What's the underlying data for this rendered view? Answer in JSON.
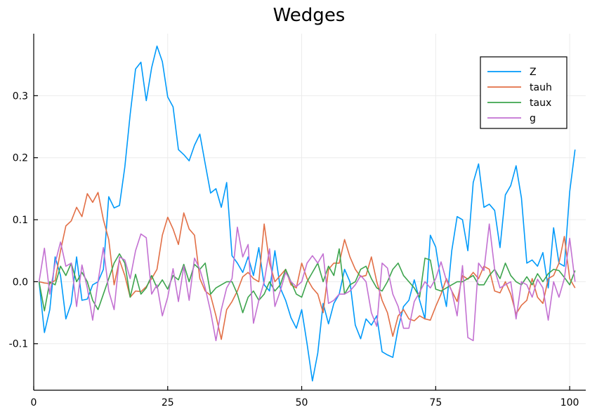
{
  "chart_data": {
    "type": "line",
    "title": "Wedges",
    "xlabel": "",
    "ylabel": "",
    "xlim": [
      0,
      103
    ],
    "ylim": [
      -0.175,
      0.4
    ],
    "xticks": [
      0,
      25,
      50,
      75,
      100
    ],
    "yticks": [
      -0.1,
      0.0,
      0.1,
      0.2,
      0.3
    ],
    "ytick_labels": [
      "-0.1",
      "0.0",
      "0.1",
      "0.2",
      "0.3"
    ],
    "grid": true,
    "legend_position": "top-right",
    "series": [
      {
        "name": "Z",
        "color": "#009AFA",
        "values": [
          0.0,
          -0.082,
          -0.045,
          0.04,
          0.01,
          -0.06,
          -0.035,
          0.04,
          -0.03,
          -0.028,
          -0.005,
          0.0,
          0.02,
          0.137,
          0.119,
          0.123,
          0.185,
          0.27,
          0.343,
          0.354,
          0.292,
          0.345,
          0.38,
          0.355,
          0.298,
          0.282,
          0.213,
          0.205,
          0.195,
          0.22,
          0.238,
          0.19,
          0.143,
          0.15,
          0.12,
          0.16,
          0.042,
          0.03,
          0.015,
          0.04,
          0.01,
          0.055,
          -0.005,
          -0.015,
          0.05,
          -0.01,
          -0.03,
          -0.058,
          -0.075,
          -0.045,
          -0.1,
          -0.16,
          -0.115,
          -0.035,
          -0.068,
          -0.035,
          -0.02,
          0.02,
          0.0,
          -0.07,
          -0.092,
          -0.06,
          -0.07,
          -0.055,
          -0.113,
          -0.118,
          -0.122,
          -0.075,
          -0.04,
          -0.03,
          0.003,
          -0.03,
          -0.06,
          0.075,
          0.056,
          0.0,
          -0.04,
          0.05,
          0.105,
          0.1,
          0.05,
          0.16,
          0.19,
          0.12,
          0.125,
          0.115,
          0.055,
          0.14,
          0.155,
          0.187,
          0.135,
          0.03,
          0.035,
          0.025,
          0.047,
          -0.01,
          0.087,
          0.03,
          0.025,
          0.145,
          0.213
        ]
      },
      {
        "name": "tauh",
        "color": "#E26F46",
        "values": [
          0.0,
          -0.002,
          -0.003,
          0.002,
          0.05,
          0.09,
          0.098,
          0.12,
          0.105,
          0.142,
          0.128,
          0.144,
          0.1,
          0.068,
          -0.005,
          0.035,
          0.01,
          -0.025,
          -0.015,
          -0.016,
          -0.008,
          0.005,
          0.02,
          0.075,
          0.104,
          0.085,
          0.06,
          0.111,
          0.085,
          0.075,
          0.005,
          -0.015,
          -0.022,
          -0.055,
          -0.093,
          -0.045,
          -0.032,
          -0.015,
          0.008,
          0.015,
          0.005,
          0.0,
          0.093,
          0.03,
          0.0,
          0.01,
          0.02,
          -0.005,
          -0.01,
          0.03,
          0.005,
          -0.01,
          -0.02,
          -0.05,
          0.02,
          0.03,
          0.03,
          0.068,
          0.04,
          0.02,
          0.008,
          0.01,
          0.04,
          0.0,
          -0.03,
          -0.05,
          -0.088,
          -0.055,
          -0.045,
          -0.06,
          -0.063,
          -0.055,
          -0.06,
          -0.062,
          -0.04,
          -0.02,
          0.005,
          -0.015,
          -0.032,
          0.01,
          0.004,
          0.015,
          0.005,
          0.025,
          0.02,
          -0.015,
          -0.018,
          0.0,
          -0.02,
          -0.052,
          -0.038,
          -0.03,
          0.005,
          -0.025,
          -0.035,
          0.005,
          0.01,
          0.03,
          0.073,
          0.005,
          -0.01
        ]
      },
      {
        "name": "taux",
        "color": "#3DA44D",
        "values": [
          0.0,
          -0.047,
          0.0,
          -0.005,
          0.025,
          0.01,
          0.03,
          0.0,
          0.015,
          0.0,
          -0.03,
          -0.045,
          -0.02,
          0.005,
          0.03,
          0.045,
          0.03,
          -0.025,
          0.012,
          -0.02,
          -0.01,
          0.01,
          -0.01,
          0.003,
          -0.012,
          0.01,
          0.003,
          0.028,
          0.0,
          0.028,
          0.02,
          0.03,
          -0.02,
          -0.01,
          -0.005,
          0.0,
          0.0,
          -0.02,
          -0.05,
          -0.025,
          -0.015,
          -0.03,
          -0.02,
          0.0,
          -0.015,
          -0.005,
          0.02,
          0.0,
          -0.02,
          -0.025,
          0.0,
          0.015,
          0.03,
          0.0,
          0.025,
          0.01,
          0.053,
          -0.02,
          -0.005,
          0.0,
          0.02,
          0.025,
          0.005,
          -0.01,
          -0.015,
          0.0,
          0.02,
          0.03,
          0.01,
          0.0,
          -0.01,
          -0.025,
          0.038,
          0.035,
          -0.012,
          -0.015,
          -0.01,
          -0.005,
          0.0,
          0.0,
          0.005,
          0.01,
          -0.005,
          -0.005,
          0.01,
          0.02,
          0.005,
          0.03,
          0.01,
          0.0,
          -0.005,
          0.008,
          -0.005,
          0.013,
          0.0,
          0.013,
          0.02,
          0.018,
          0.007,
          -0.005,
          0.018
        ]
      },
      {
        "name": "g",
        "color": "#C371D2",
        "values": [
          0.0,
          0.054,
          -0.02,
          0.03,
          0.064,
          0.025,
          0.03,
          -0.04,
          0.027,
          -0.01,
          -0.062,
          0.0,
          0.055,
          -0.015,
          -0.045,
          0.04,
          0.035,
          0.005,
          0.05,
          0.077,
          0.071,
          -0.02,
          -0.005,
          -0.055,
          -0.025,
          0.021,
          -0.032,
          0.025,
          -0.03,
          0.038,
          0.02,
          -0.01,
          -0.048,
          -0.095,
          -0.045,
          -0.01,
          0.005,
          0.088,
          0.04,
          0.06,
          -0.067,
          -0.03,
          0.0,
          0.053,
          -0.04,
          -0.015,
          0.015,
          0.0,
          -0.008,
          0.0,
          0.03,
          0.042,
          0.03,
          0.045,
          -0.035,
          -0.03,
          -0.02,
          -0.02,
          -0.015,
          -0.005,
          0.01,
          0.0,
          -0.05,
          -0.072,
          0.03,
          0.022,
          -0.02,
          -0.04,
          -0.075,
          -0.075,
          -0.032,
          -0.017,
          0.0,
          -0.01,
          0.005,
          0.032,
          0.002,
          -0.015,
          -0.055,
          0.026,
          -0.09,
          -0.095,
          0.03,
          0.018,
          0.093,
          0.02,
          -0.01,
          -0.005,
          0.0,
          -0.06,
          0.0,
          -0.005,
          -0.025,
          0.004,
          -0.01,
          -0.062,
          0.0,
          -0.025,
          0.005,
          0.07,
          0.0
        ]
      }
    ]
  }
}
